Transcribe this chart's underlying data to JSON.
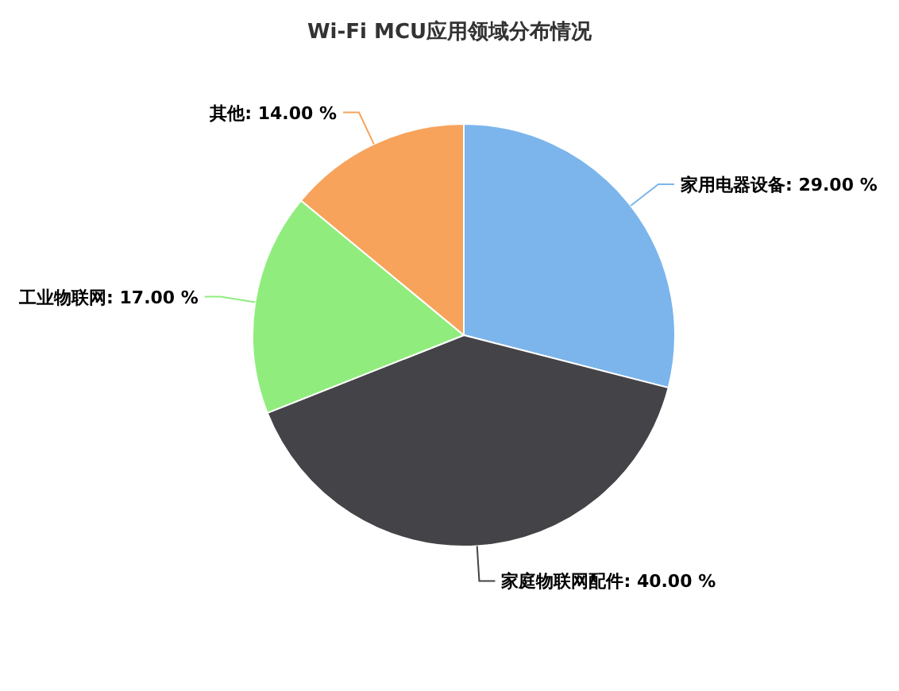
{
  "chart_data": {
    "type": "pie",
    "title": "Wi-Fi MCU应用领域分布情况",
    "categories": [
      "家用电器设备",
      "家庭物联网配件",
      "工业物联网",
      "其他"
    ],
    "values": [
      29,
      40,
      17,
      14
    ],
    "value_labels": [
      "29.00 %",
      "40.00 %",
      "17.00 %",
      "14.00 %"
    ],
    "colors": [
      "#7cb5ec",
      "#434348",
      "#90ed7d",
      "#f7a35c"
    ]
  }
}
